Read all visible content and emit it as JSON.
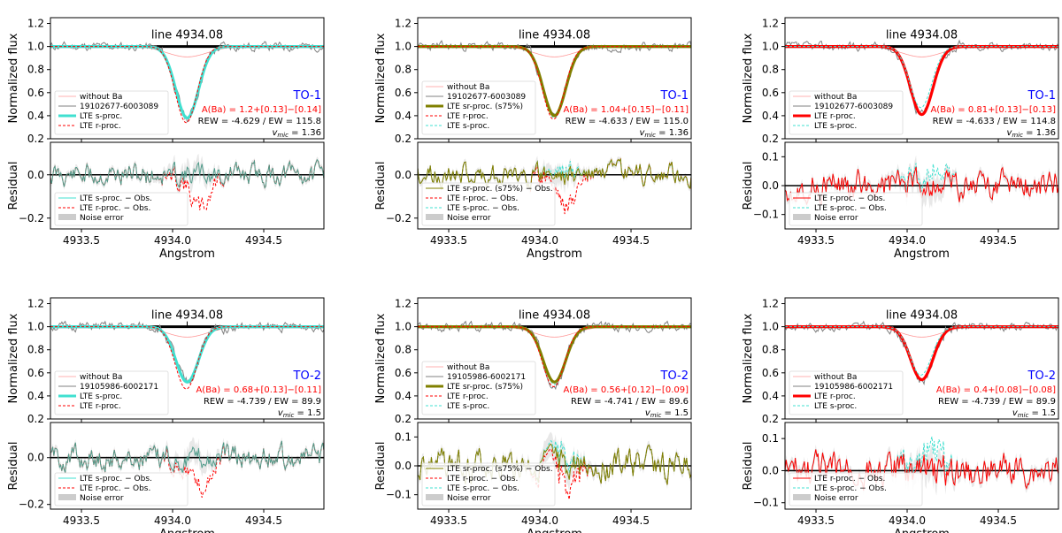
{
  "colors": {
    "s": "#40e0d0",
    "r": "#ff0000",
    "sr": "#808000",
    "obs": "#808080",
    "noba": "#ff9999",
    "tag": "#0000ff",
    "abund": "#ff0000",
    "noise": "#cccccc"
  },
  "chart_data": {
    "type": "line",
    "figure": "Ba II 4934.08 line profile fits with residuals",
    "common": {
      "line_label": "line 4934.08",
      "line_center": 4934.08,
      "x_range": [
        4933.33,
        4934.83
      ],
      "x_ticks": [
        4933.5,
        4934.0,
        4934.5
      ],
      "x_tick_labels": [
        "4933.5",
        "4934.0",
        "4934.5"
      ],
      "xlabel": "Angstrom",
      "ylabel_top": "Normalized flux",
      "ylabel_bottom": "Residual",
      "top_ylim": [
        0.2,
        1.25
      ],
      "top_ticks": [
        0.2,
        0.4,
        0.6,
        0.8,
        1.0,
        1.2
      ],
      "top_tick_labels": [
        "0.2",
        "0.4",
        "0.6",
        "0.8",
        "1.0",
        "1.2"
      ]
    },
    "panels": [
      {
        "row": 0,
        "col": 0,
        "mode": "s",
        "star": "19102677-6003089",
        "tag": "TO-1",
        "abund": "A(Ba) = 1.2+[0.13]−[0.14]",
        "rew": "REW = -4.629 / EW = 115.8",
        "vmic_label": "v",
        "vmic_sub": "mic",
        "vmic_val": " = 1.36",
        "top_legend": [
          "without Ba",
          "19102677-6003089",
          "LTE s-proc.",
          "LTE r-proc."
        ],
        "res_legend": [
          "LTE s-proc. − Obs.",
          "LTE r-proc. − Obs.",
          "Noise error"
        ],
        "res_ylim": [
          -0.25,
          0.15
        ],
        "res_ticks": [
          -0.2,
          0.0
        ],
        "res_tick_labels": [
          "−0.2",
          "0.0"
        ],
        "min_fit": 0.38,
        "min_alt": 0.34,
        "dip_alt": -0.16,
        "seed": 11
      },
      {
        "row": 0,
        "col": 1,
        "mode": "sr",
        "star": "19102677-6003089",
        "tag": "TO-1",
        "abund": "A(Ba) = 1.04+[0.15]−[0.11]",
        "rew": "REW = -4.633 / EW = 115.0",
        "vmic_label": "v",
        "vmic_sub": "mic",
        "vmic_val": " = 1.36",
        "top_legend": [
          "without Ba",
          "19102677-6003089",
          "LTE sr-proc. (s75%)",
          "LTE r-proc.",
          "LTE s-proc."
        ],
        "res_legend": [
          "LTE sr-proc. (s75%) − Obs.",
          "LTE r-proc. − Obs.",
          "LTE s-proc. − Obs.",
          "Noise error"
        ],
        "res_ylim": [
          -0.25,
          0.15
        ],
        "res_ticks": [
          -0.2,
          0.0
        ],
        "res_tick_labels": [
          "−0.2",
          "0.0"
        ],
        "min_fit": 0.4,
        "min_alt": 0.37,
        "dip_alt": -0.14,
        "seed": 23
      },
      {
        "row": 0,
        "col": 2,
        "mode": "r",
        "star": "19102677-6003089",
        "tag": "TO-1",
        "abund": "A(Ba) = 0.81+[0.13]−[0.13]",
        "rew": "REW = -4.633 / EW = 114.8",
        "vmic_label": "v",
        "vmic_sub": "mic",
        "vmic_val": " = 1.36",
        "top_legend": [
          "without Ba",
          "19102677-6003089",
          "LTE r-proc.",
          "LTE s-proc."
        ],
        "res_legend": [
          "LTE r-proc. − Obs.",
          "LTE s-proc. − Obs.",
          "Noise error"
        ],
        "res_ylim": [
          -0.15,
          0.15
        ],
        "res_ticks": [
          -0.1,
          0.0,
          0.1
        ],
        "res_tick_labels": [
          "−0.1",
          "0.0",
          "0.1"
        ],
        "min_fit": 0.41,
        "min_alt": 0.47,
        "dip_alt": 0.06,
        "seed": 37
      },
      {
        "row": 1,
        "col": 0,
        "mode": "s",
        "star": "19105986-6002171",
        "tag": "TO-2",
        "abund": "A(Ba) = 0.68+[0.13]−[0.11]",
        "rew": "REW = -4.739 / EW = 89.9",
        "vmic_label": "v",
        "vmic_sub": "mic",
        "vmic_val": " = 1.5",
        "top_legend": [
          "without Ba",
          "19105986-6002171",
          "LTE s-proc.",
          "LTE r-proc."
        ],
        "res_legend": [
          "LTE s-proc. − Obs.",
          "LTE r-proc. − Obs.",
          "Noise error"
        ],
        "res_ylim": [
          -0.22,
          0.15
        ],
        "res_ticks": [
          -0.2,
          0.0
        ],
        "res_tick_labels": [
          "−0.2",
          "0.0"
        ],
        "min_fit": 0.52,
        "min_alt": 0.46,
        "dip_alt": -0.13,
        "seed": 51
      },
      {
        "row": 1,
        "col": 1,
        "mode": "sr",
        "star": "19105986-6002171",
        "tag": "TO-2",
        "abund": "A(Ba) = 0.56+[0.12]−[0.09]",
        "rew": "REW = -4.741 / EW = 89.6",
        "vmic_label": "v",
        "vmic_sub": "mic",
        "vmic_val": " = 1.5",
        "top_legend": [
          "without Ba",
          "19105986-6002171",
          "LTE sr-proc. (s75%)",
          "LTE r-proc.",
          "LTE s-proc."
        ],
        "res_legend": [
          "LTE sr-proc. (s75%) − Obs.",
          "LTE r-proc. − Obs.",
          "LTE s-proc. − Obs.",
          "Noise error"
        ],
        "res_ylim": [
          -0.15,
          0.15
        ],
        "res_ticks": [
          -0.1,
          0.0,
          0.1
        ],
        "res_tick_labels": [
          "−0.1",
          "0.0",
          "0.1"
        ],
        "min_fit": 0.52,
        "min_alt": 0.48,
        "dip_alt": -0.07,
        "seed": 67
      },
      {
        "row": 1,
        "col": 2,
        "mode": "r",
        "star": "19105986-6002171",
        "tag": "TO-2",
        "abund": "A(Ba) = 0.4+[0.08]−[0.08]",
        "rew": "REW = -4.739 / EW = 89.9",
        "vmic_label": "v",
        "vmic_sub": "mic",
        "vmic_val": " = 1.5",
        "top_legend": [
          "without Ba",
          "19105986-6002171",
          "LTE r-proc.",
          "LTE s-proc."
        ],
        "res_legend": [
          "LTE r-proc. − Obs.",
          "LTE s-proc. − Obs.",
          "Noise error"
        ],
        "res_ylim": [
          -0.12,
          0.15
        ],
        "res_ticks": [
          -0.1,
          0.0,
          0.1
        ],
        "res_tick_labels": [
          "−0.1",
          "0.0",
          "0.1"
        ],
        "min_fit": 0.54,
        "min_alt": 0.58,
        "dip_alt": 0.07,
        "seed": 83
      }
    ]
  }
}
